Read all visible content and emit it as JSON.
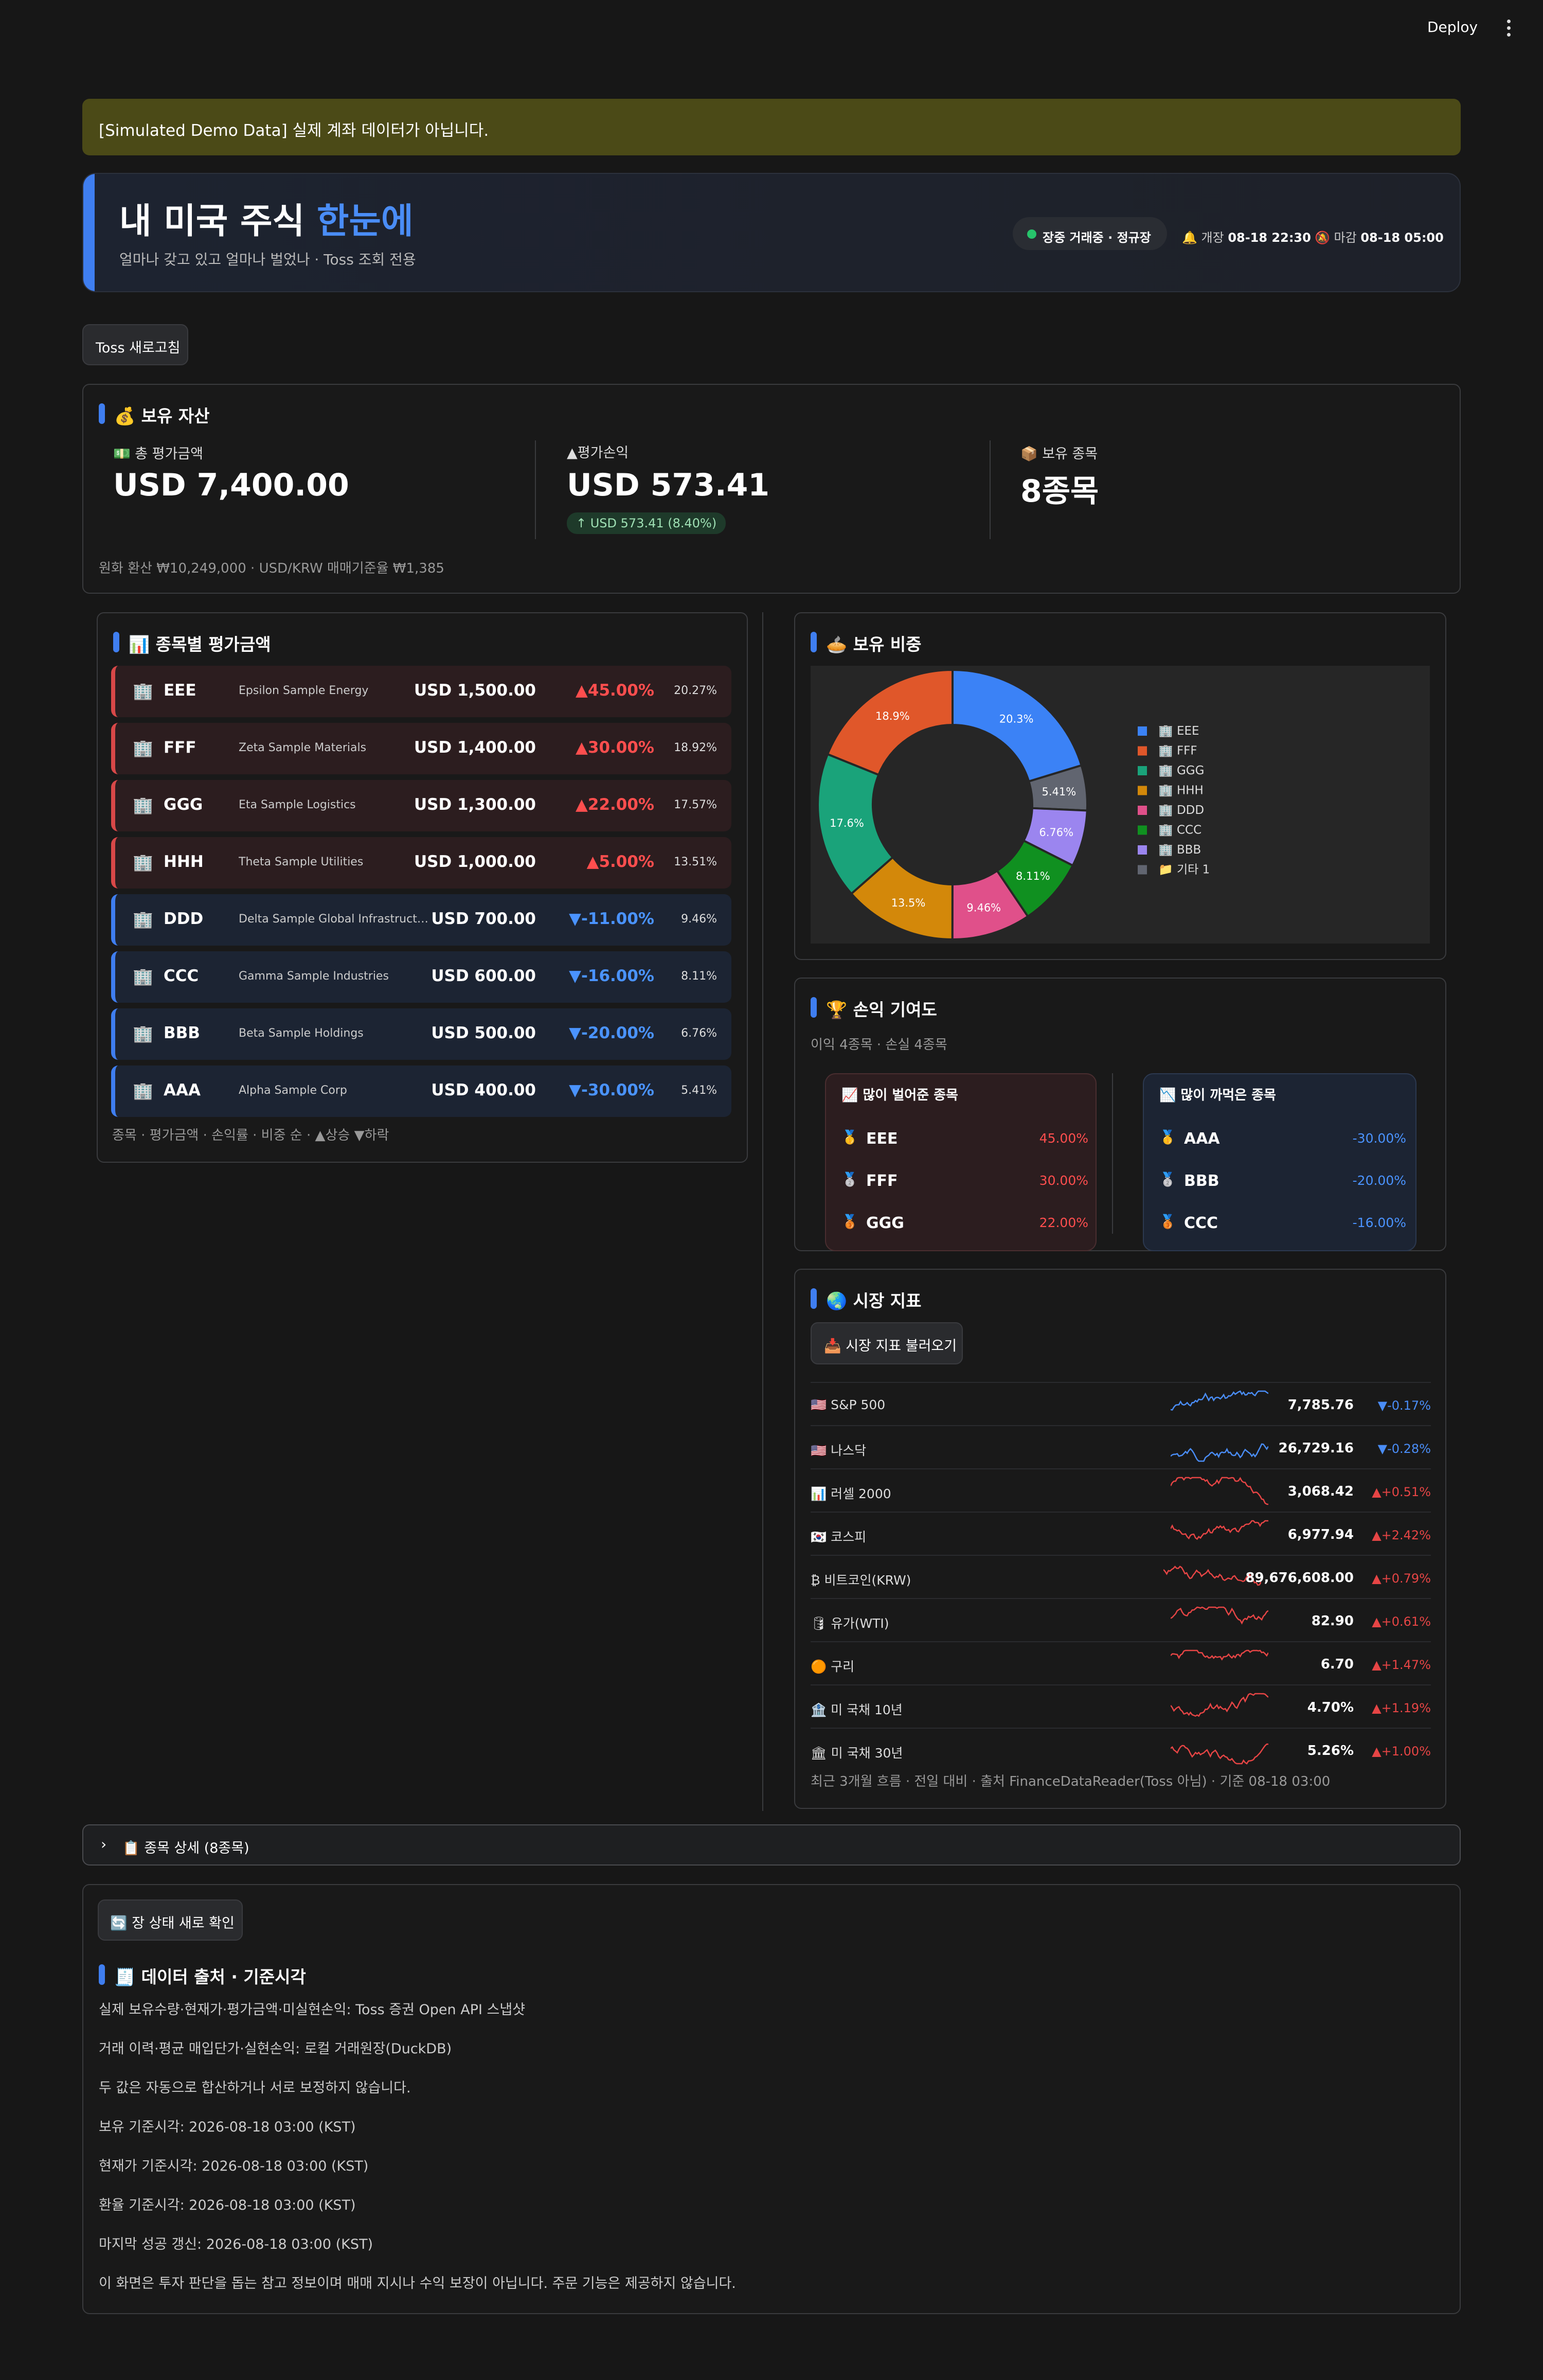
{
  "topbar": {
    "deploy_label": "Deploy"
  },
  "warning": "[Simulated Demo Data] 실제 계좌 데이터가 아닙니다.",
  "hero": {
    "title_main": "내 미국 주식 ",
    "title_accent": "한눈에",
    "subtitle": "얼마나 갖고 있고 얼마나 벌었나 · Toss 조회 전용",
    "status": "장중 거래중 · 정규장",
    "open_label": "🔔 개장",
    "open_time": "08-18 22:30",
    "close_label": "🔕 마감",
    "close_time": "08-18 05:00",
    "accent_color": "#4a8df7"
  },
  "refresh_button": "Toss 새로고침",
  "assets": {
    "title": "💰 보유 자산",
    "total_label": "💵 총 평가금액",
    "total_value": "USD 7,400.00",
    "pnl_label": "▲평가손익",
    "pnl_value": "USD 573.41",
    "pnl_badge": "↑ USD 573.41 (8.40%)",
    "count_label": "📦 보유 종목",
    "count_value": "8종목",
    "note": "원화 환산 ₩10,249,000 · USD/KRW 매매기준율 ₩1,385"
  },
  "holdings": {
    "title": "📊 종목별 평가금액",
    "items": [
      {
        "icon": "🏢",
        "ticker": "EEE",
        "name": "Epsilon Sample Energy",
        "value": "USD 1,500.00",
        "pct": "▲45.00%",
        "weight": "20.27%",
        "dir": "up"
      },
      {
        "icon": "🏢",
        "ticker": "FFF",
        "name": "Zeta Sample Materials",
        "value": "USD 1,400.00",
        "pct": "▲30.00%",
        "weight": "18.92%",
        "dir": "up"
      },
      {
        "icon": "🏢",
        "ticker": "GGG",
        "name": "Eta Sample Logistics",
        "value": "USD 1,300.00",
        "pct": "▲22.00%",
        "weight": "17.57%",
        "dir": "up"
      },
      {
        "icon": "🏢",
        "ticker": "HHH",
        "name": "Theta Sample Utilities",
        "value": "USD 1,000.00",
        "pct": "▲5.00%",
        "weight": "13.51%",
        "dir": "up"
      },
      {
        "icon": "🏢",
        "ticker": "DDD",
        "name": "Delta Sample Global Infrastructure Corporation",
        "value": "USD 700.00",
        "pct": "▼-11.00%",
        "weight": "9.46%",
        "dir": "dn"
      },
      {
        "icon": "🏢",
        "ticker": "CCC",
        "name": "Gamma Sample Industries",
        "value": "USD 600.00",
        "pct": "▼-16.00%",
        "weight": "8.11%",
        "dir": "dn"
      },
      {
        "icon": "🏢",
        "ticker": "BBB",
        "name": "Beta Sample Holdings",
        "value": "USD 500.00",
        "pct": "▼-20.00%",
        "weight": "6.76%",
        "dir": "dn"
      },
      {
        "icon": "🏢",
        "ticker": "AAA",
        "name": "Alpha Sample Corp",
        "value": "USD 400.00",
        "pct": "▼-30.00%",
        "weight": "5.41%",
        "dir": "dn"
      }
    ],
    "note": "종목 · 평가금액 · 손익률 · 비중 순 · ▲상승 ▼하락"
  },
  "allocation": {
    "title": "🥧 보유 비중"
  },
  "chart_data": {
    "type": "pie",
    "donut": true,
    "categories": [
      "🏢 EEE",
      "🏢 FFF",
      "🏢 GGG",
      "🏢 HHH",
      "🏢 DDD",
      "🏢 CCC",
      "🏢 BBB",
      "📁 기타 1"
    ],
    "values": [
      20.3,
      18.9,
      17.6,
      13.5,
      9.46,
      8.11,
      6.76,
      5.41
    ],
    "labels": [
      "20.3%",
      "18.9%",
      "17.6%",
      "13.5%",
      "9.46%",
      "8.11%",
      "6.76%",
      "5.41%"
    ],
    "colors": [
      "#3b82f6",
      "#e0572a",
      "#1aa37a",
      "#d3880a",
      "#e0508a",
      "#109020",
      "#9b85ef",
      "#616570"
    ],
    "legend_placement": "right",
    "order": "clockwise-from-top"
  },
  "legend_order": [
    0,
    1,
    2,
    3,
    4,
    5,
    6,
    7
  ],
  "slice_order": [
    0,
    7,
    6,
    5,
    4,
    3,
    2,
    1
  ],
  "contribution": {
    "title": "🏆 손익 기여도",
    "subtitle": "이익 4종목 · 손실 4종목",
    "gainers_title": "📈 많이 벌어준 종목",
    "losers_title": "📉 많이 까먹은 종목",
    "gainers": [
      {
        "medal": "🥇",
        "ticker": "EEE",
        "pct": "45.00%"
      },
      {
        "medal": "🥈",
        "ticker": "FFF",
        "pct": "30.00%"
      },
      {
        "medal": "🥉",
        "ticker": "GGG",
        "pct": "22.00%"
      }
    ],
    "losers": [
      {
        "medal": "🥇",
        "ticker": "AAA",
        "pct": "-30.00%"
      },
      {
        "medal": "🥈",
        "ticker": "BBB",
        "pct": "-20.00%"
      },
      {
        "medal": "🥉",
        "ticker": "CCC",
        "pct": "-16.00%"
      }
    ]
  },
  "market": {
    "title": "🌏 시장 지표",
    "load_button": "📥 시장 지표 불러오기",
    "items": [
      {
        "name": "🇺🇸 S&P 500",
        "value": "7,785.76",
        "change": "▼-0.17%",
        "dir": "dn"
      },
      {
        "name": "🇺🇸 나스닥",
        "value": "26,729.16",
        "change": "▼-0.28%",
        "dir": "dn"
      },
      {
        "name": "📊 러셀 2000",
        "value": "3,068.42",
        "change": "▲+0.51%",
        "dir": "up"
      },
      {
        "name": "🇰🇷 코스피",
        "value": "6,977.94",
        "change": "▲+2.42%",
        "dir": "up"
      },
      {
        "name": "₿ 비트코인(KRW)",
        "value": "89,676,608.00",
        "change": "▲+0.79%",
        "dir": "up"
      },
      {
        "name": "🛢 유가(WTI)",
        "value": "82.90",
        "change": "▲+0.61%",
        "dir": "up"
      },
      {
        "name": "🟠 구리",
        "value": "6.70",
        "change": "▲+1.47%",
        "dir": "up"
      },
      {
        "name": "🏦 미 국채 10년",
        "value": "4.70%",
        "change": "▲+1.19%",
        "dir": "up"
      },
      {
        "name": "🏛 미 국채 30년",
        "value": "5.26%",
        "change": "▲+1.00%",
        "dir": "up"
      }
    ],
    "note": "최근 3개월 흐름 · 전일 대비 · 출처 FinanceDataReader(Toss 아님) · 기준 08-18 03:00"
  },
  "details_expander": "📋 종목 상세 (8종목)",
  "status_button": "🔄 장 상태 새로 확인",
  "sources": {
    "title": "🧾 데이터 출처 · 기준시각",
    "lines": [
      "실제 보유수량·현재가·평가금액·미실현손익: Toss 증권 Open API 스냅샷",
      "거래 이력·평균 매입단가·실현손익: 로컬 거래원장(DuckDB)",
      "두 값은 자동으로 합산하거나 서로 보정하지 않습니다.",
      "보유 기준시각: 2026-08-18 03:00 (KST)",
      "현재가 기준시각: 2026-08-18 03:00 (KST)",
      "환율 기준시각: 2026-08-18 03:00 (KST)",
      "마지막 성공 갱신: 2026-08-18 03:00 (KST)",
      "이 화면은 투자 판단을 돕는 참고 정보이며 매매 지시나 수익 보장이 아닙니다. 주문 기능은 제공하지 않습니다."
    ]
  }
}
